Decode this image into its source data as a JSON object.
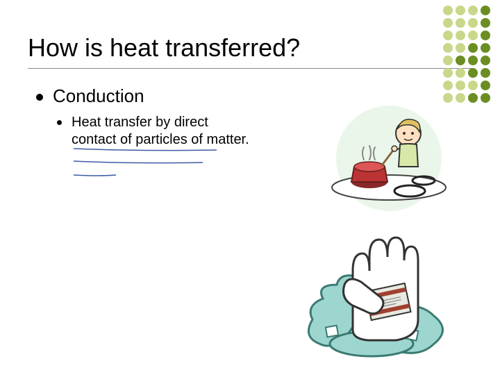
{
  "title": "How is heat transferred?",
  "main_bullet": {
    "label": "Conduction",
    "sub": {
      "text": "Heat transfer by direct contact of particles of matter."
    }
  },
  "decoration": {
    "dot_colors": [
      "#c8d88a",
      "#c8d88a",
      "#c8d88a",
      "#6b8e23",
      "#c8d88a",
      "#c8d88a",
      "#c8d88a",
      "#6b8e23",
      "#c8d88a",
      "#c8d88a",
      "#c8d88a",
      "#6b8e23",
      "#c8d88a",
      "#c8d88a",
      "#6b8e23",
      "#6b8e23",
      "#c8d88a",
      "#6b8e23",
      "#6b8e23",
      "#6b8e23",
      "#c8d88a",
      "#c8d88a",
      "#6b8e23",
      "#6b8e23",
      "#c8d88a",
      "#c8d88a",
      "#c8d88a",
      "#6b8e23",
      "#c8d88a",
      "#c8d88a",
      "#6b8e23",
      "#6b8e23"
    ]
  },
  "underline_color": "#3c5aa6",
  "illustrations": {
    "cooking": {
      "bg_circle": "#eaf6ea",
      "stove_color": "#444444",
      "burner_color": "#222222",
      "pot_color": "#bb3333",
      "boy_skin": "#ffe0c0",
      "boy_hair": "#e0c060",
      "boy_shirt": "#d8e8a8"
    },
    "hand": {
      "water_color": "#9dd6cf",
      "hand_color": "#ffffff",
      "hand_outline": "#333333",
      "package_color": "#e8e8e0",
      "package_stripe": "#a04030"
    }
  }
}
